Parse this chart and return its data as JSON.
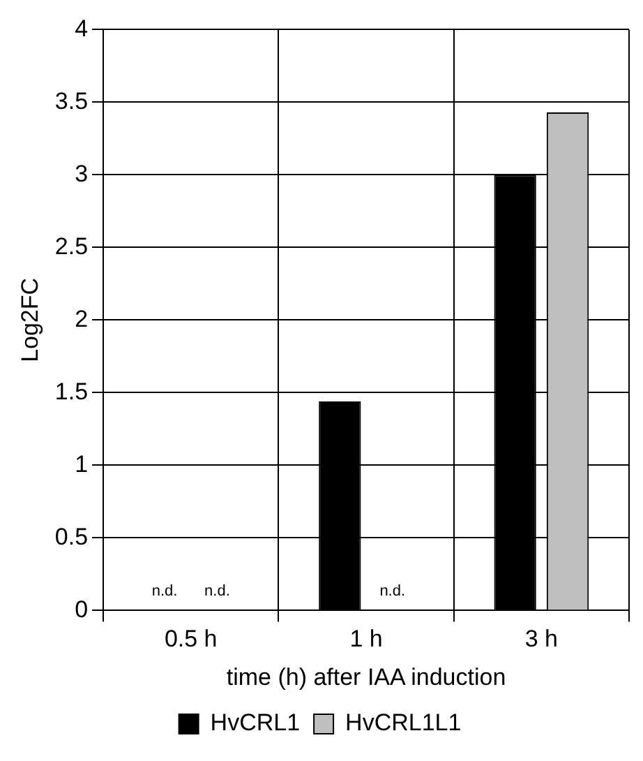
{
  "chart_data": {
    "type": "bar",
    "xlabel": "time (h) after IAA induction",
    "ylabel": "Log2FC",
    "categories": [
      "0.5 h",
      "1 h",
      "3 h"
    ],
    "series": [
      {
        "name": "HvCRL1",
        "color": "#000000",
        "values": [
          null,
          1.44,
          3.0
        ]
      },
      {
        "name": "HvCRL1L1",
        "color": "#bfbfbf",
        "values": [
          null,
          null,
          3.43
        ]
      }
    ],
    "ylim": [
      0,
      4
    ],
    "yticks": [
      0,
      0.5,
      1,
      1.5,
      2,
      2.5,
      3,
      3.5,
      4
    ],
    "grid": true,
    "legend": "bottom",
    "annotations": [
      "n.d.",
      "n.d.",
      "n.d."
    ]
  }
}
